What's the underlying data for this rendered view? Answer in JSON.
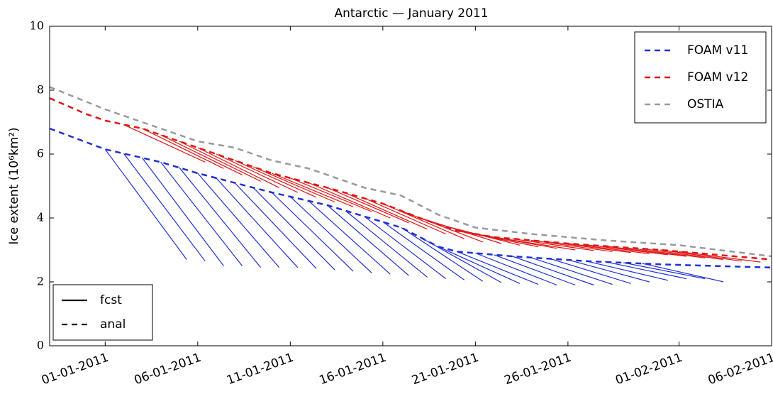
{
  "chart_data": {
    "type": "line",
    "title": "Antarctic — January 2011",
    "y_label": "Ice extent (10⁶km²)",
    "xlim": [
      -3,
      36
    ],
    "ylim": [
      0,
      10
    ],
    "yticks": [
      0,
      2,
      4,
      6,
      8,
      10
    ],
    "xticks": [
      {
        "value": 0,
        "label": "01-01-2011"
      },
      {
        "value": 5,
        "label": "06-01-2011"
      },
      {
        "value": 10,
        "label": "11-01-2011"
      },
      {
        "value": 15,
        "label": "16-01-2011"
      },
      {
        "value": 20,
        "label": "21-01-2011"
      },
      {
        "value": 25,
        "label": "26-01-2011"
      },
      {
        "value": 31,
        "label": "01-02-2011"
      },
      {
        "value": 36,
        "label": "06-02-2011"
      }
    ],
    "legend": "upper right",
    "series": [
      {
        "name": "FOAM v11",
        "color": "#1f2fd6",
        "style": "dashed",
        "x": [
          -3,
          0,
          3,
          5,
          9,
          12,
          14,
          16,
          18,
          19,
          22,
          26,
          30,
          34,
          36
        ],
        "values": [
          6.8,
          6.15,
          5.75,
          5.4,
          4.8,
          4.4,
          4.05,
          3.7,
          3.1,
          2.95,
          2.8,
          2.65,
          2.55,
          2.48,
          2.45
        ],
        "forecasts": [
          {
            "x": [
              0,
              4.4
            ],
            "values": [
              6.15,
              2.7
            ]
          },
          {
            "x": [
              1,
              5.4
            ],
            "values": [
              6.02,
              2.65
            ]
          },
          {
            "x": [
              2,
              6.4
            ],
            "values": [
              5.88,
              2.5
            ]
          },
          {
            "x": [
              3,
              7.4
            ],
            "values": [
              5.75,
              2.5
            ]
          },
          {
            "x": [
              4,
              8.4
            ],
            "values": [
              5.58,
              2.45
            ]
          },
          {
            "x": [
              5,
              9.4
            ],
            "values": [
              5.4,
              2.45
            ]
          },
          {
            "x": [
              6,
              10.4
            ],
            "values": [
              5.25,
              2.45
            ]
          },
          {
            "x": [
              7,
              11.4
            ],
            "values": [
              5.1,
              2.42
            ]
          },
          {
            "x": [
              8,
              12.4
            ],
            "values": [
              4.95,
              2.38
            ]
          },
          {
            "x": [
              9,
              13.4
            ],
            "values": [
              4.8,
              2.33
            ]
          },
          {
            "x": [
              10,
              14.4
            ],
            "values": [
              4.67,
              2.28
            ]
          },
          {
            "x": [
              11,
              15.4
            ],
            "values": [
              4.53,
              2.24
            ]
          },
          {
            "x": [
              12,
              16.4
            ],
            "values": [
              4.4,
              2.2
            ]
          },
          {
            "x": [
              13,
              17.4
            ],
            "values": [
              4.22,
              2.15
            ]
          },
          {
            "x": [
              14,
              18.4
            ],
            "values": [
              4.05,
              2.1
            ]
          },
          {
            "x": [
              15,
              19.4
            ],
            "values": [
              3.88,
              2.06
            ]
          },
          {
            "x": [
              16,
              20.4
            ],
            "values": [
              3.7,
              2.02
            ]
          },
          {
            "x": [
              17,
              21.4
            ],
            "values": [
              3.4,
              1.98
            ]
          },
          {
            "x": [
              18,
              22.4
            ],
            "values": [
              3.1,
              1.95
            ]
          },
          {
            "x": [
              19,
              23.4
            ],
            "values": [
              2.95,
              1.92
            ]
          },
          {
            "x": [
              20,
              24.4
            ],
            "values": [
              2.9,
              1.9
            ]
          },
          {
            "x": [
              21,
              25.4
            ],
            "values": [
              2.85,
              1.9
            ]
          },
          {
            "x": [
              22,
              26.4
            ],
            "values": [
              2.8,
              1.9
            ]
          },
          {
            "x": [
              23,
              27.4
            ],
            "values": [
              2.76,
              1.92
            ]
          },
          {
            "x": [
              24,
              28.4
            ],
            "values": [
              2.73,
              1.95
            ]
          },
          {
            "x": [
              25,
              29.4
            ],
            "values": [
              2.69,
              2.0
            ]
          },
          {
            "x": [
              26,
              30.4
            ],
            "values": [
              2.65,
              2.05
            ]
          },
          {
            "x": [
              27,
              31.4
            ],
            "values": [
              2.63,
              2.1
            ]
          },
          {
            "x": [
              28,
              32.4
            ],
            "values": [
              2.6,
              2.1
            ]
          },
          {
            "x": [
              29,
              33.4
            ],
            "values": [
              2.58,
              2.0
            ]
          }
        ]
      },
      {
        "name": "FOAM v12",
        "color": "#e01515",
        "style": "dashed",
        "x": [
          -3,
          -1,
          0,
          2,
          5,
          9,
          12,
          15,
          17,
          19,
          21,
          25,
          30,
          36
        ],
        "values": [
          7.75,
          7.25,
          7.05,
          6.8,
          6.2,
          5.4,
          4.95,
          4.45,
          4.0,
          3.6,
          3.4,
          3.2,
          3.0,
          2.7
        ],
        "forecasts": [
          {
            "x": [
              1,
              5.4
            ],
            "values": [
              6.92,
              5.75
            ]
          },
          {
            "x": [
              2,
              6.4
            ],
            "values": [
              6.8,
              5.55
            ]
          },
          {
            "x": [
              3,
              7.4
            ],
            "values": [
              6.6,
              5.35
            ]
          },
          {
            "x": [
              4,
              8.4
            ],
            "values": [
              6.4,
              5.15
            ]
          },
          {
            "x": [
              5,
              9.4
            ],
            "values": [
              6.2,
              4.95
            ]
          },
          {
            "x": [
              6,
              10.4
            ],
            "values": [
              6.0,
              4.8
            ]
          },
          {
            "x": [
              7,
              11.4
            ],
            "values": [
              5.8,
              4.65
            ]
          },
          {
            "x": [
              8,
              12.4
            ],
            "values": [
              5.6,
              4.5
            ]
          },
          {
            "x": [
              9,
              13.4
            ],
            "values": [
              5.4,
              4.35
            ]
          },
          {
            "x": [
              10,
              14.4
            ],
            "values": [
              5.25,
              4.2
            ]
          },
          {
            "x": [
              11,
              15.4
            ],
            "values": [
              5.1,
              4.0
            ]
          },
          {
            "x": [
              12,
              16.4
            ],
            "values": [
              4.95,
              3.85
            ]
          },
          {
            "x": [
              13,
              17.4
            ],
            "values": [
              4.78,
              3.65
            ]
          },
          {
            "x": [
              14,
              18.4
            ],
            "values": [
              4.62,
              3.5
            ]
          },
          {
            "x": [
              15,
              19.4
            ],
            "values": [
              4.45,
              3.35
            ]
          },
          {
            "x": [
              16,
              20.4
            ],
            "values": [
              4.22,
              3.25
            ]
          },
          {
            "x": [
              17,
              21.4
            ],
            "values": [
              4.0,
              3.2
            ]
          },
          {
            "x": [
              18,
              22.4
            ],
            "values": [
              3.8,
              3.15
            ]
          },
          {
            "x": [
              19,
              23.4
            ],
            "values": [
              3.6,
              3.1
            ]
          },
          {
            "x": [
              20,
              24.4
            ],
            "values": [
              3.5,
              3.05
            ]
          },
          {
            "x": [
              21,
              25.4
            ],
            "values": [
              3.4,
              3.0
            ]
          },
          {
            "x": [
              22,
              26.4
            ],
            "values": [
              3.35,
              2.98
            ]
          },
          {
            "x": [
              23,
              27.4
            ],
            "values": [
              3.3,
              2.95
            ]
          },
          {
            "x": [
              24,
              28.4
            ],
            "values": [
              3.25,
              2.92
            ]
          },
          {
            "x": [
              25,
              29.4
            ],
            "values": [
              3.2,
              2.88
            ]
          },
          {
            "x": [
              26,
              30.4
            ],
            "values": [
              3.16,
              2.85
            ]
          },
          {
            "x": [
              27,
              31.4
            ],
            "values": [
              3.12,
              2.8
            ]
          },
          {
            "x": [
              28,
              32.4
            ],
            "values": [
              3.08,
              2.75
            ]
          },
          {
            "x": [
              29,
              33.4
            ],
            "values": [
              3.04,
              2.7
            ]
          },
          {
            "x": [
              30,
              34.4
            ],
            "values": [
              3.0,
              2.65
            ]
          },
          {
            "x": [
              31,
              35.4
            ],
            "values": [
              2.95,
              2.62
            ]
          }
        ]
      },
      {
        "name": "OSTIA",
        "color": "#9a9a9a",
        "style": "dashed",
        "x": [
          -3,
          0,
          3,
          5,
          7,
          9,
          11,
          14,
          16,
          18,
          20,
          23,
          27,
          31,
          36
        ],
        "values": [
          8.1,
          7.4,
          6.8,
          6.4,
          6.2,
          5.8,
          5.55,
          4.95,
          4.7,
          4.1,
          3.7,
          3.5,
          3.3,
          3.15,
          2.8
        ]
      }
    ],
    "style_legend": {
      "position": "lower left",
      "items": [
        {
          "name": "fcst",
          "style": "solid"
        },
        {
          "name": "anal",
          "style": "dashed"
        }
      ]
    }
  }
}
